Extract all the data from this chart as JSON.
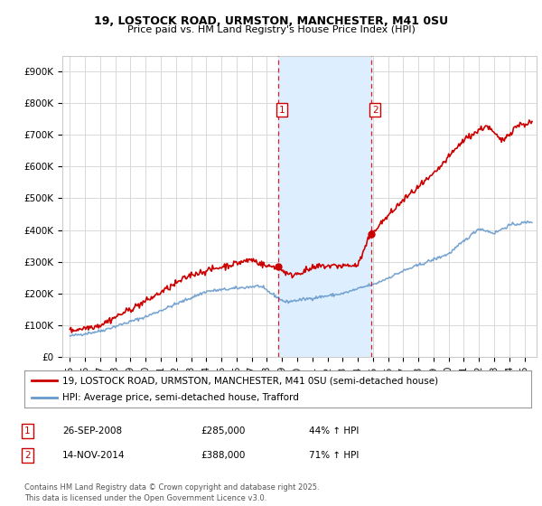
{
  "title1": "19, LOSTOCK ROAD, URMSTON, MANCHESTER, M41 0SU",
  "title2": "Price paid vs. HM Land Registry's House Price Index (HPI)",
  "legend1": "19, LOSTOCK ROAD, URMSTON, MANCHESTER, M41 0SU (semi-detached house)",
  "legend2": "HPI: Average price, semi-detached house, Trafford",
  "footer": "Contains HM Land Registry data © Crown copyright and database right 2025.\nThis data is licensed under the Open Government Licence v3.0.",
  "annotation1_label": "1",
  "annotation1_date": "26-SEP-2008",
  "annotation1_price": "£285,000",
  "annotation1_hpi": "44% ↑ HPI",
  "annotation2_label": "2",
  "annotation2_date": "14-NOV-2014",
  "annotation2_price": "£388,000",
  "annotation2_hpi": "71% ↑ HPI",
  "background_color": "#ffffff",
  "plot_bg_color": "#ffffff",
  "grid_color": "#d8d8d8",
  "red_line_color": "#cc0000",
  "blue_line_color": "#6699cc",
  "shaded_region_color": "#ddeeff",
  "vline_color": "#cc0000",
  "ylim": [
    0,
    950000
  ],
  "yticks": [
    0,
    100000,
    200000,
    300000,
    400000,
    500000,
    600000,
    700000,
    800000,
    900000
  ],
  "ytick_labels": [
    "£0",
    "£100K",
    "£200K",
    "£300K",
    "£400K",
    "£500K",
    "£600K",
    "£700K",
    "£800K",
    "£900K"
  ],
  "point1_x": 2008.73,
  "point1_y": 285000,
  "point2_x": 2014.87,
  "point2_y": 388000,
  "xlim_left": 1994.5,
  "xlim_right": 2025.8
}
